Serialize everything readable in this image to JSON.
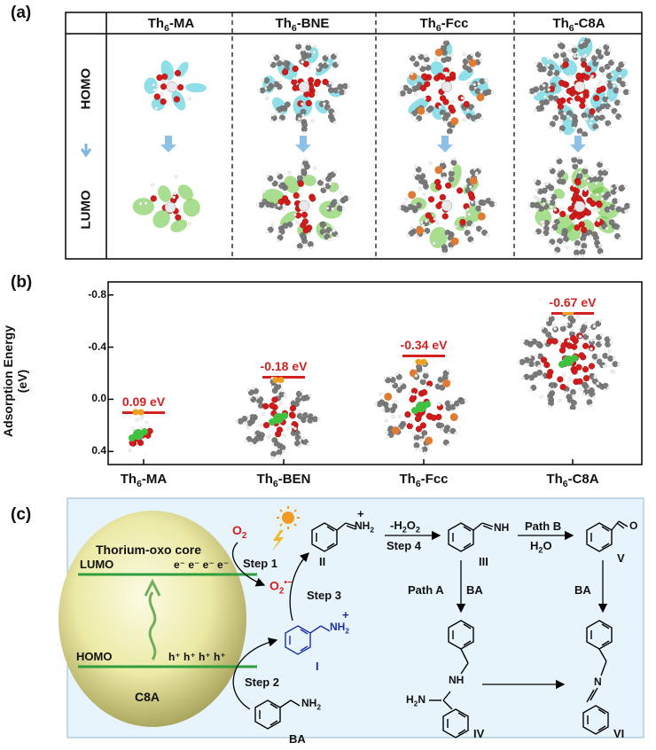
{
  "panel_a": {
    "label": "(a)",
    "columns": [
      {
        "prefix": "Th",
        "sub": "6",
        "suffix": "-MA"
      },
      {
        "prefix": "Th",
        "sub": "6",
        "suffix": "-BNE"
      },
      {
        "prefix": "Th",
        "sub": "6",
        "suffix": "-Fcc"
      },
      {
        "prefix": "Th",
        "sub": "6",
        "suffix": "-C8A"
      }
    ],
    "rows": [
      "HOMO",
      "LUMO"
    ]
  },
  "panel_b": {
    "label": "(b)",
    "ylabel": "Adsorption Energy (eV)",
    "yticks": [
      "-0.8",
      "-0.4",
      "0.0",
      "0.4"
    ],
    "xticks": [
      {
        "prefix": "Th",
        "sub": "6",
        "suffix": "-MA"
      },
      {
        "prefix": "Th",
        "sub": "6",
        "suffix": "-BEN"
      },
      {
        "prefix": "Th",
        "sub": "6",
        "suffix": "-Fcc"
      },
      {
        "prefix": "Th",
        "sub": "6",
        "suffix": "-C8A"
      }
    ],
    "energy_labels": [
      "0.09 eV",
      "-0.18 eV",
      "-0.34 eV",
      "-0.67 eV"
    ]
  },
  "chart_data": {
    "type": "scatter",
    "categories": [
      "Th6-MA",
      "Th6-BEN",
      "Th6-Fcc",
      "Th6-C8A"
    ],
    "values": [
      0.09,
      -0.18,
      -0.34,
      -0.67
    ],
    "title": "",
    "xlabel": "",
    "ylabel": "Adsorption Energy (eV)",
    "ylim": [
      0.5,
      -0.9
    ],
    "y_axis_inverted": true
  },
  "panel_c": {
    "label": "(c)",
    "core_title": "Thorium-oxo core",
    "lumo": "LUMO",
    "homo": "HOMO",
    "c8a": "C8A",
    "electrons": "e⁻ e⁻ e⁻ e⁻",
    "holes": "h⁺ h⁺ h⁺ h⁺",
    "o2": "O",
    "o2_sub": "2",
    "o2_radical": "O",
    "o2_radical_sub": "2",
    "o2_radical_sup": "•−",
    "steps": [
      "Step 1",
      "Step 2",
      "Step 3",
      "Step 4"
    ],
    "h2o2": "-H",
    "h2o2_sub": "2",
    "h2o2_tail": "O",
    "h2o2_sub2": "2",
    "path_a": "Path A",
    "path_b": "Path B",
    "ba": "BA",
    "h2o": "H",
    "h2o_sub": "2",
    "h2o_tail": "O",
    "roman": [
      "I",
      "II",
      "III",
      "IV",
      "V",
      "VI"
    ],
    "nh2": "NH",
    "nh2_sub": "2",
    "nh": "NH",
    "h2n": "H",
    "h2n_sub": "2",
    "h2n_tail": "N",
    "n": "N",
    "o": "O",
    "plus": "+"
  },
  "colors": {
    "accent_red": "#d32020",
    "panel_c_bg": "#e8f4fc",
    "green_level": "#2e9e3e",
    "blue_intermediate": "#1a2fa8"
  }
}
